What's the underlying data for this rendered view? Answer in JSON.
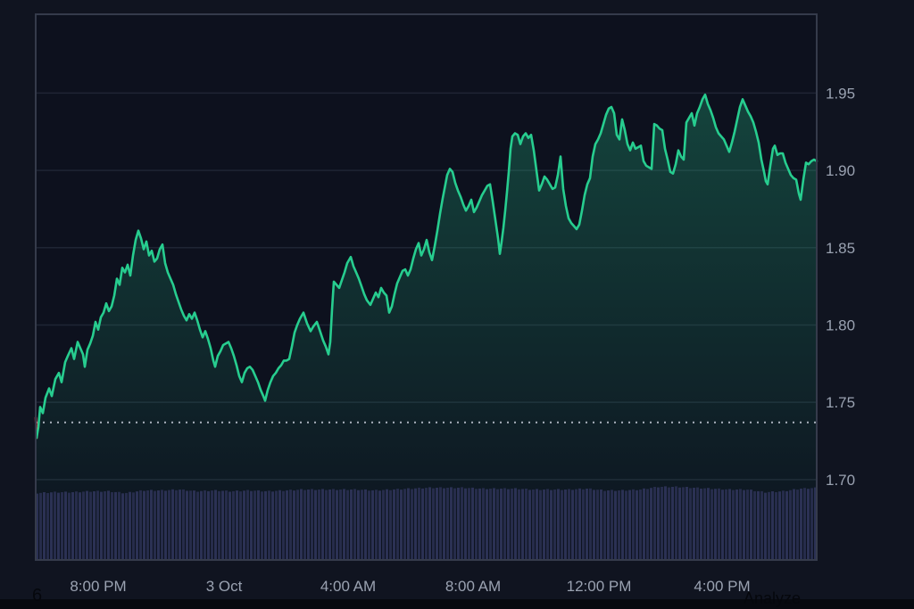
{
  "chart_data": {
    "type": "area",
    "title": "",
    "legend": "none",
    "grid": "horizontal-only",
    "ylim": [
      1.648,
      2.001
    ],
    "x_max_offset": 875,
    "previous_close": 1.737,
    "red_until_index": 1,
    "y_axis": {
      "ticks": [
        {
          "v": 1.95,
          "label": "1.95"
        },
        {
          "v": 1.9,
          "label": "1.90"
        },
        {
          "v": 1.85,
          "label": "1.85"
        },
        {
          "v": 1.8,
          "label": "1.80"
        },
        {
          "v": 1.75,
          "label": "1.75"
        },
        {
          "v": 1.7,
          "label": "1.70"
        }
      ]
    },
    "x_axis": {
      "unit": "px_offset_0_to_875",
      "ticks": [
        {
          "label": "8:00 PM",
          "offset": 70
        },
        {
          "label": "3 Oct",
          "offset": 211
        },
        {
          "label": "4:00 AM",
          "offset": 350
        },
        {
          "label": "8:00 AM",
          "offset": 490
        },
        {
          "label": "12:00 PM",
          "offset": 631
        },
        {
          "label": "4:00 PM",
          "offset": 769
        }
      ]
    },
    "points": [
      [
        0,
        1.74
      ],
      [
        1,
        1.727
      ],
      [
        3,
        1.734
      ],
      [
        5,
        1.747
      ],
      [
        8,
        1.743
      ],
      [
        11,
        1.753
      ],
      [
        15,
        1.759
      ],
      [
        18,
        1.754
      ],
      [
        22,
        1.765
      ],
      [
        26,
        1.769
      ],
      [
        29,
        1.763
      ],
      [
        33,
        1.776
      ],
      [
        36,
        1.78
      ],
      [
        40,
        1.785
      ],
      [
        43,
        1.778
      ],
      [
        47,
        1.789
      ],
      [
        50,
        1.785
      ],
      [
        53,
        1.781
      ],
      [
        55,
        1.773
      ],
      [
        58,
        1.784
      ],
      [
        61,
        1.788
      ],
      [
        64,
        1.793
      ],
      [
        67,
        1.802
      ],
      [
        70,
        1.797
      ],
      [
        73,
        1.805
      ],
      [
        76,
        1.808
      ],
      [
        79,
        1.814
      ],
      [
        82,
        1.809
      ],
      [
        85,
        1.812
      ],
      [
        88,
        1.819
      ],
      [
        91,
        1.83
      ],
      [
        94,
        1.826
      ],
      [
        97,
        1.837
      ],
      [
        100,
        1.834
      ],
      [
        103,
        1.839
      ],
      [
        106,
        1.832
      ],
      [
        109,
        1.845
      ],
      [
        112,
        1.855
      ],
      [
        115,
        1.861
      ],
      [
        118,
        1.856
      ],
      [
        121,
        1.849
      ],
      [
        124,
        1.854
      ],
      [
        127,
        1.845
      ],
      [
        130,
        1.848
      ],
      [
        133,
        1.841
      ],
      [
        136,
        1.843
      ],
      [
        139,
        1.849
      ],
      [
        142,
        1.852
      ],
      [
        145,
        1.84
      ],
      [
        148,
        1.834
      ],
      [
        151,
        1.83
      ],
      [
        154,
        1.826
      ],
      [
        157,
        1.82
      ],
      [
        160,
        1.815
      ],
      [
        163,
        1.81
      ],
      [
        166,
        1.806
      ],
      [
        169,
        1.803
      ],
      [
        172,
        1.807
      ],
      [
        175,
        1.804
      ],
      [
        178,
        1.808
      ],
      [
        181,
        1.803
      ],
      [
        184,
        1.797
      ],
      [
        187,
        1.792
      ],
      [
        190,
        1.796
      ],
      [
        193,
        1.791
      ],
      [
        196,
        1.785
      ],
      [
        199,
        1.777
      ],
      [
        201,
        1.773
      ],
      [
        204,
        1.78
      ],
      [
        207,
        1.783
      ],
      [
        210,
        1.787
      ],
      [
        213,
        1.788
      ],
      [
        216,
        1.789
      ],
      [
        219,
        1.785
      ],
      [
        222,
        1.78
      ],
      [
        225,
        1.774
      ],
      [
        228,
        1.767
      ],
      [
        231,
        1.763
      ],
      [
        234,
        1.769
      ],
      [
        237,
        1.772
      ],
      [
        240,
        1.773
      ],
      [
        243,
        1.771
      ],
      [
        246,
        1.767
      ],
      [
        249,
        1.763
      ],
      [
        252,
        1.758
      ],
      [
        255,
        1.754
      ],
      [
        257,
        1.751
      ],
      [
        260,
        1.758
      ],
      [
        263,
        1.763
      ],
      [
        266,
        1.767
      ],
      [
        269,
        1.769
      ],
      [
        272,
        1.772
      ],
      [
        275,
        1.774
      ],
      [
        278,
        1.777
      ],
      [
        281,
        1.777
      ],
      [
        284,
        1.778
      ],
      [
        287,
        1.786
      ],
      [
        290,
        1.795
      ],
      [
        293,
        1.8
      ],
      [
        296,
        1.804
      ],
      [
        300,
        1.808
      ],
      [
        304,
        1.801
      ],
      [
        308,
        1.796
      ],
      [
        311,
        1.799
      ],
      [
        315,
        1.802
      ],
      [
        318,
        1.797
      ],
      [
        322,
        1.79
      ],
      [
        325,
        1.786
      ],
      [
        328,
        1.781
      ],
      [
        330,
        1.789
      ],
      [
        332,
        1.81
      ],
      [
        334,
        1.828
      ],
      [
        337,
        1.826
      ],
      [
        340,
        1.824
      ],
      [
        343,
        1.829
      ],
      [
        346,
        1.834
      ],
      [
        349,
        1.84
      ],
      [
        353,
        1.844
      ],
      [
        356,
        1.838
      ],
      [
        359,
        1.834
      ],
      [
        362,
        1.83
      ],
      [
        365,
        1.825
      ],
      [
        368,
        1.82
      ],
      [
        371,
        1.816
      ],
      [
        375,
        1.813
      ],
      [
        378,
        1.817
      ],
      [
        381,
        1.821
      ],
      [
        384,
        1.818
      ],
      [
        387,
        1.824
      ],
      [
        390,
        1.821
      ],
      [
        393,
        1.819
      ],
      [
        396,
        1.808
      ],
      [
        399,
        1.812
      ],
      [
        402,
        1.82
      ],
      [
        405,
        1.827
      ],
      [
        408,
        1.831
      ],
      [
        411,
        1.835
      ],
      [
        414,
        1.836
      ],
      [
        417,
        1.832
      ],
      [
        420,
        1.836
      ],
      [
        423,
        1.843
      ],
      [
        426,
        1.849
      ],
      [
        429,
        1.853
      ],
      [
        432,
        1.845
      ],
      [
        435,
        1.849
      ],
      [
        438,
        1.855
      ],
      [
        441,
        1.847
      ],
      [
        444,
        1.842
      ],
      [
        447,
        1.851
      ],
      [
        450,
        1.861
      ],
      [
        453,
        1.872
      ],
      [
        456,
        1.882
      ],
      [
        459,
        1.891
      ],
      [
        461,
        1.897
      ],
      [
        464,
        1.901
      ],
      [
        467,
        1.899
      ],
      [
        470,
        1.892
      ],
      [
        473,
        1.887
      ],
      [
        476,
        1.883
      ],
      [
        479,
        1.878
      ],
      [
        482,
        1.874
      ],
      [
        485,
        1.877
      ],
      [
        488,
        1.881
      ],
      [
        491,
        1.873
      ],
      [
        494,
        1.876
      ],
      [
        497,
        1.88
      ],
      [
        500,
        1.884
      ],
      [
        503,
        1.887
      ],
      [
        506,
        1.89
      ],
      [
        509,
        1.891
      ],
      [
        512,
        1.88
      ],
      [
        515,
        1.868
      ],
      [
        518,
        1.856
      ],
      [
        520,
        1.846
      ],
      [
        522,
        1.854
      ],
      [
        524,
        1.863
      ],
      [
        526,
        1.874
      ],
      [
        528,
        1.886
      ],
      [
        530,
        1.899
      ],
      [
        532,
        1.914
      ],
      [
        534,
        1.922
      ],
      [
        537,
        1.924
      ],
      [
        540,
        1.923
      ],
      [
        543,
        1.917
      ],
      [
        546,
        1.922
      ],
      [
        549,
        1.924
      ],
      [
        552,
        1.921
      ],
      [
        555,
        1.923
      ],
      [
        558,
        1.913
      ],
      [
        561,
        1.9
      ],
      [
        564,
        1.887
      ],
      [
        567,
        1.891
      ],
      [
        570,
        1.896
      ],
      [
        573,
        1.894
      ],
      [
        576,
        1.891
      ],
      [
        579,
        1.888
      ],
      [
        582,
        1.889
      ],
      [
        585,
        1.897
      ],
      [
        588,
        1.909
      ],
      [
        591,
        1.888
      ],
      [
        594,
        1.877
      ],
      [
        597,
        1.869
      ],
      [
        600,
        1.866
      ],
      [
        603,
        1.864
      ],
      [
        606,
        1.862
      ],
      [
        609,
        1.865
      ],
      [
        612,
        1.874
      ],
      [
        615,
        1.884
      ],
      [
        618,
        1.891
      ],
      [
        621,
        1.895
      ],
      [
        624,
        1.909
      ],
      [
        627,
        1.917
      ],
      [
        630,
        1.92
      ],
      [
        633,
        1.924
      ],
      [
        636,
        1.93
      ],
      [
        639,
        1.936
      ],
      [
        642,
        1.94
      ],
      [
        645,
        1.941
      ],
      [
        648,
        1.937
      ],
      [
        651,
        1.923
      ],
      [
        654,
        1.92
      ],
      [
        657,
        1.933
      ],
      [
        660,
        1.926
      ],
      [
        663,
        1.917
      ],
      [
        666,
        1.913
      ],
      [
        669,
        1.918
      ],
      [
        672,
        1.914
      ],
      [
        675,
        1.915
      ],
      [
        678,
        1.916
      ],
      [
        681,
        1.906
      ],
      [
        684,
        1.903
      ],
      [
        687,
        1.902
      ],
      [
        690,
        1.901
      ],
      [
        693,
        1.93
      ],
      [
        696,
        1.929
      ],
      [
        699,
        1.927
      ],
      [
        702,
        1.926
      ],
      [
        705,
        1.914
      ],
      [
        708,
        1.907
      ],
      [
        711,
        1.899
      ],
      [
        714,
        1.898
      ],
      [
        717,
        1.904
      ],
      [
        720,
        1.913
      ],
      [
        723,
        1.909
      ],
      [
        726,
        1.907
      ],
      [
        729,
        1.931
      ],
      [
        732,
        1.934
      ],
      [
        735,
        1.937
      ],
      [
        738,
        1.929
      ],
      [
        741,
        1.937
      ],
      [
        744,
        1.941
      ],
      [
        747,
        1.946
      ],
      [
        750,
        1.949
      ],
      [
        753,
        1.943
      ],
      [
        756,
        1.939
      ],
      [
        759,
        1.934
      ],
      [
        762,
        1.928
      ],
      [
        765,
        1.924
      ],
      [
        768,
        1.922
      ],
      [
        771,
        1.92
      ],
      [
        774,
        1.916
      ],
      [
        777,
        1.912
      ],
      [
        780,
        1.918
      ],
      [
        783,
        1.925
      ],
      [
        786,
        1.933
      ],
      [
        789,
        1.941
      ],
      [
        792,
        1.946
      ],
      [
        795,
        1.942
      ],
      [
        798,
        1.938
      ],
      [
        801,
        1.935
      ],
      [
        804,
        1.931
      ],
      [
        807,
        1.925
      ],
      [
        810,
        1.918
      ],
      [
        813,
        1.907
      ],
      [
        816,
        1.899
      ],
      [
        818,
        1.893
      ],
      [
        820,
        1.891
      ],
      [
        823,
        1.903
      ],
      [
        826,
        1.914
      ],
      [
        828,
        1.916
      ],
      [
        831,
        1.91
      ],
      [
        834,
        1.911
      ],
      [
        837,
        1.911
      ],
      [
        840,
        1.905
      ],
      [
        843,
        1.901
      ],
      [
        846,
        1.897
      ],
      [
        849,
        1.895
      ],
      [
        852,
        1.894
      ],
      [
        855,
        1.885
      ],
      [
        857,
        1.881
      ],
      [
        860,
        1.894
      ],
      [
        863,
        1.905
      ],
      [
        866,
        1.904
      ],
      [
        869,
        1.906
      ],
      [
        872,
        1.907
      ],
      [
        875,
        1.906
      ]
    ],
    "volume_profile": [
      75,
      76,
      76,
      77,
      77,
      75,
      78,
      78,
      79,
      77,
      78,
      77,
      78,
      77,
      78,
      79,
      79,
      79,
      79,
      78,
      79,
      80,
      81,
      81,
      81,
      80,
      80,
      80,
      79,
      79,
      79,
      80,
      78,
      78,
      79,
      82,
      82,
      81,
      80,
      79,
      79,
      76,
      77,
      80,
      81
    ]
  },
  "footer": {
    "analyze_label": "Analyze",
    "stray_text": "6"
  },
  "colors": {
    "line_up": "#27cd8f",
    "line_down": "#ea3943",
    "fill_top": "rgba(39,205,143,0.27)",
    "fill_bottom": "rgba(39,205,143,0)",
    "volume_bar": "#2b3154",
    "volume_bar_alt": "#262c4b",
    "grid_line": "#1f2534",
    "axis_label": "#9aa2b1",
    "frame": "#353b4b",
    "plot_bg": "#0d111e",
    "page_bg": "#101420",
    "prev_close_dotted": "#c7cdd9",
    "bottom_strip": "#07090f",
    "footer_text": "#05070c"
  }
}
